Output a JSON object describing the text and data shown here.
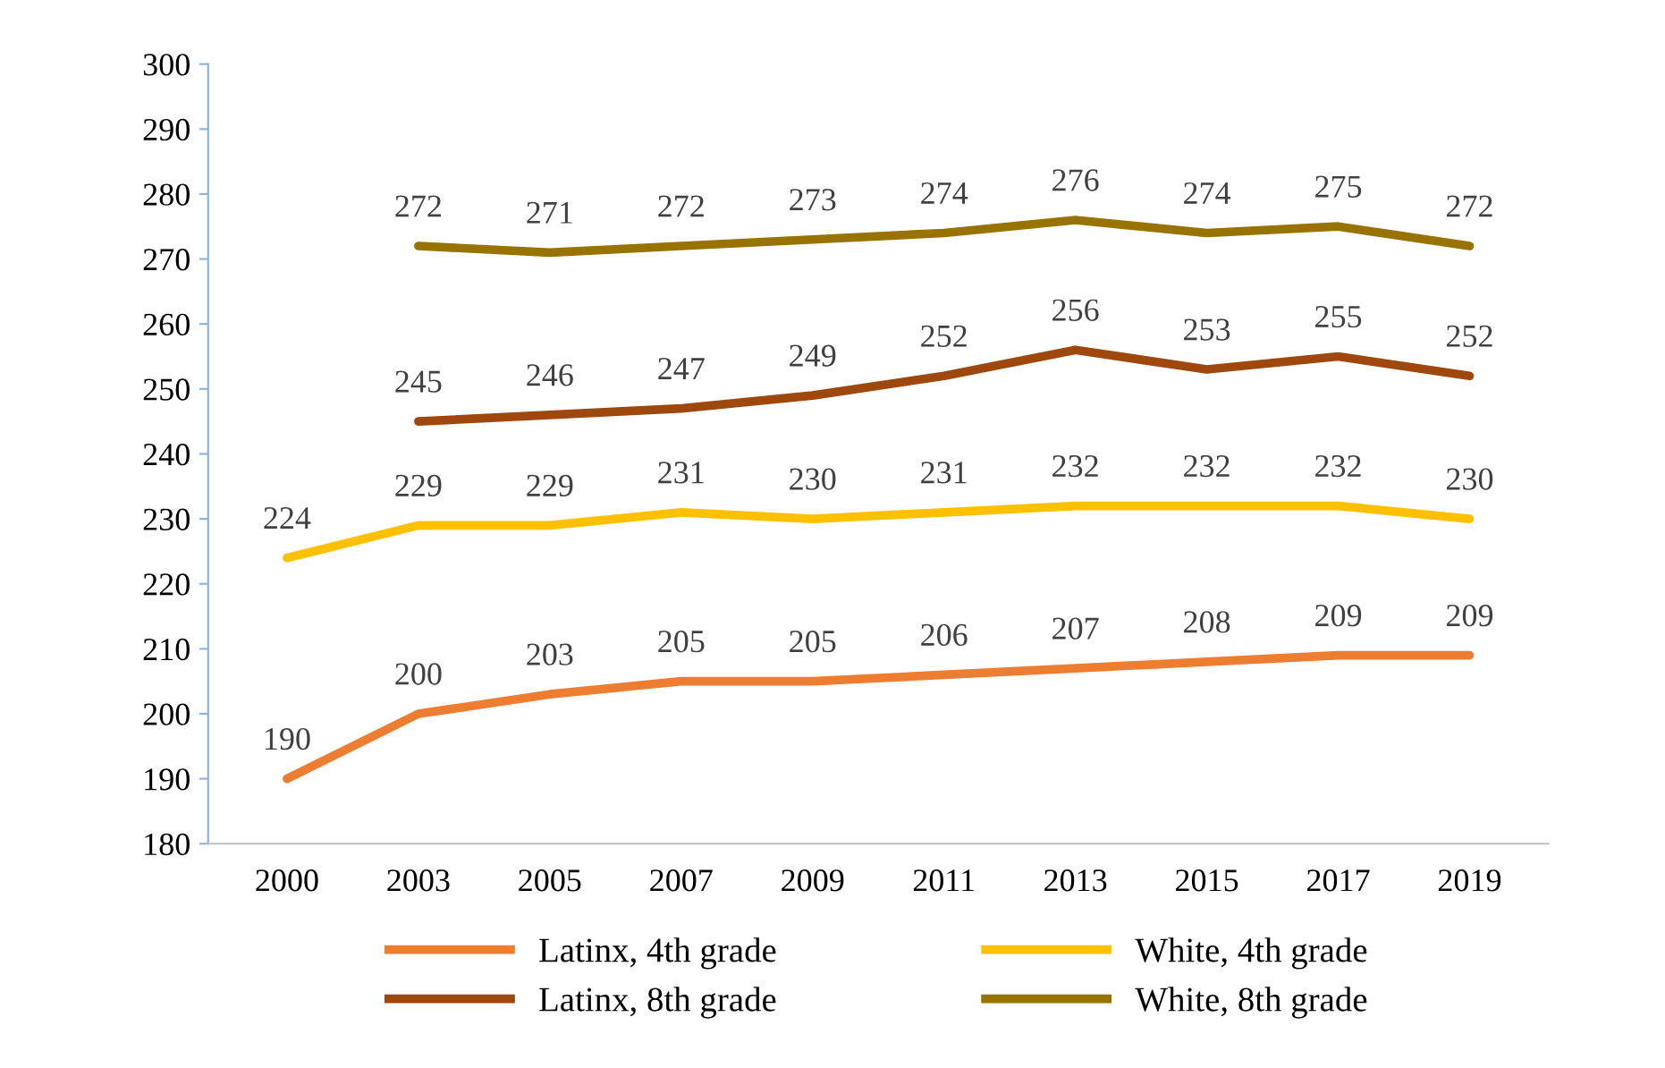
{
  "chart_data": {
    "type": "line",
    "categories": [
      "2000",
      "2003",
      "2005",
      "2007",
      "2009",
      "2011",
      "2013",
      "2015",
      "2017",
      "2019"
    ],
    "series": [
      {
        "name": "Latinx, 4th grade",
        "color": "#ed7d31",
        "values": [
          190,
          200,
          203,
          205,
          205,
          206,
          207,
          208,
          209,
          209
        ]
      },
      {
        "name": "White, 4th grade",
        "color": "#ffc000",
        "values": [
          224,
          229,
          229,
          231,
          230,
          231,
          232,
          232,
          232,
          230
        ]
      },
      {
        "name": "Latinx, 8th grade",
        "color": "#9e480e",
        "values": [
          null,
          245,
          246,
          247,
          249,
          252,
          256,
          253,
          255,
          252
        ]
      },
      {
        "name": "White, 8th grade",
        "color": "#997300",
        "values": [
          null,
          272,
          271,
          272,
          273,
          274,
          276,
          274,
          275,
          272
        ]
      }
    ],
    "ylim": [
      180,
      300
    ],
    "yticks": [
      180,
      190,
      200,
      210,
      220,
      230,
      240,
      250,
      260,
      270,
      280,
      290,
      300
    ],
    "grid": false,
    "legend": "bottom",
    "data_labels": true,
    "marker": "none",
    "line_style": "solid"
  }
}
